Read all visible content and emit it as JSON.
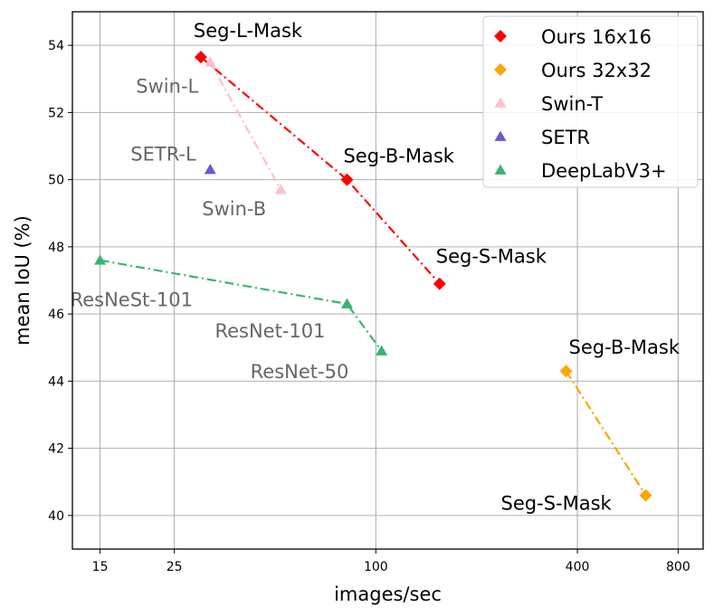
{
  "chart_data": {
    "type": "scatter",
    "xlabel": "images/sec",
    "ylabel": "mean IoU (%)",
    "xscale": "log",
    "xlim": [
      12.4,
      950
    ],
    "ylim": [
      39.0,
      55.0
    ],
    "xticks": [
      15,
      25,
      100,
      400,
      800
    ],
    "yticks": [
      40,
      42,
      44,
      46,
      48,
      50,
      52,
      54
    ],
    "grid": true,
    "legend_position": "top-right",
    "series": [
      {
        "name": "Ours 16x16",
        "color": "#ff0000",
        "marker": "diamond",
        "line": "dash-dot",
        "points": [
          {
            "x": 30,
            "y": 53.65,
            "label": "Seg-L-Mask"
          },
          {
            "x": 82,
            "y": 50.0,
            "label": "Seg-B-Mask"
          },
          {
            "x": 155,
            "y": 46.9,
            "label": "Seg-S-Mask"
          }
        ]
      },
      {
        "name": "Ours 32x32",
        "color": "#ffa500",
        "marker": "diamond",
        "line": "dash-dot",
        "points": [
          {
            "x": 370,
            "y": 44.3,
            "label": "Seg-B-Mask"
          },
          {
            "x": 640,
            "y": 40.6,
            "label": "Seg-S-Mask"
          }
        ]
      },
      {
        "name": "Swin-T",
        "color": "#ffc0cb",
        "marker": "triangle",
        "line": "dash-dot",
        "points": [
          {
            "x": 32,
            "y": 53.5,
            "label": "Swin-L"
          },
          {
            "x": 52,
            "y": 49.7,
            "label": "Swin-B"
          }
        ]
      },
      {
        "name": "SETR",
        "color": "#6a5acd",
        "marker": "triangle",
        "line": "none",
        "points": [
          {
            "x": 32,
            "y": 50.3,
            "label": "SETR-L"
          }
        ]
      },
      {
        "name": "DeepLabV3+",
        "color": "#3cb371",
        "marker": "triangle",
        "line": "dash-dot",
        "points": [
          {
            "x": 15,
            "y": 47.6,
            "label": "ResNeSt-101"
          },
          {
            "x": 82,
            "y": 46.3,
            "label": "ResNet-101"
          },
          {
            "x": 104,
            "y": 44.9,
            "label": "ResNet-50"
          }
        ]
      }
    ]
  }
}
